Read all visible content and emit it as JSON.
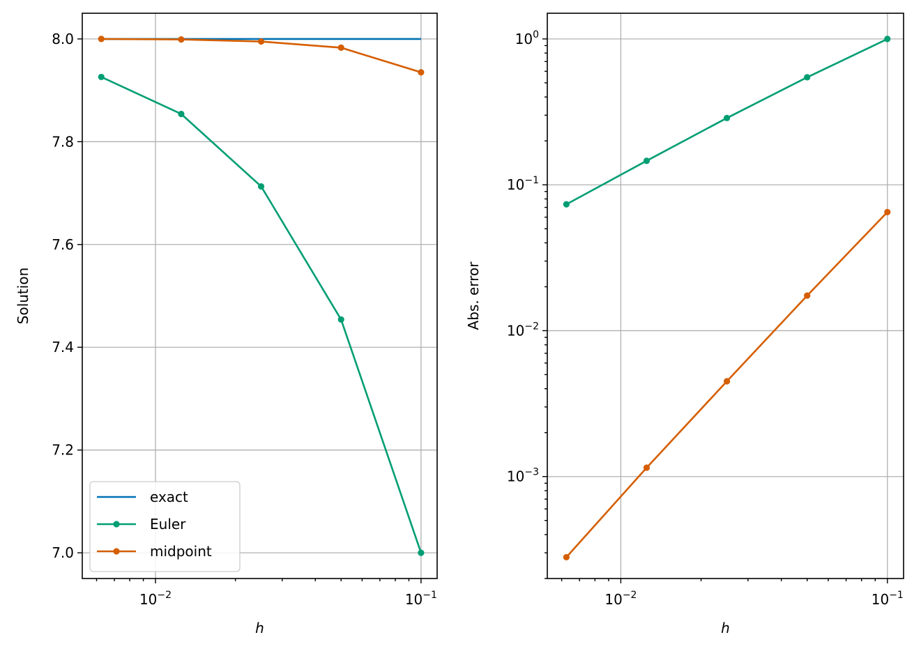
{
  "chart_data": [
    {
      "type": "line",
      "xlabel": "h",
      "ylabel": "Solution",
      "xscale": "log",
      "xlim": [
        0.0053,
        0.115
      ],
      "ylim": [
        6.95,
        8.05
      ],
      "grid": true,
      "legend_position": "lower-left",
      "x_tick_labels": [
        {
          "value": 0.01,
          "base": "10",
          "exp": "−2"
        },
        {
          "value": 0.1,
          "base": "10",
          "exp": "−1"
        }
      ],
      "y_tick_labels": [
        {
          "value": 7.0,
          "label": "7.0"
        },
        {
          "value": 7.2,
          "label": "7.2"
        },
        {
          "value": 7.4,
          "label": "7.4"
        },
        {
          "value": 7.6,
          "label": "7.6"
        },
        {
          "value": 7.8,
          "label": "7.8"
        },
        {
          "value": 8.0,
          "label": "8.0"
        }
      ],
      "series": [
        {
          "name": "exact",
          "color": "#0072b2",
          "markers": false,
          "x": [
            0.00625,
            0.0125,
            0.025,
            0.05,
            0.1
          ],
          "y": [
            8.0,
            8.0,
            8.0,
            8.0,
            8.0
          ]
        },
        {
          "name": "Euler",
          "color": "#009e73",
          "markers": true,
          "x": [
            0.00625,
            0.0125,
            0.025,
            0.05,
            0.1
          ],
          "y": [
            7.926,
            7.854,
            7.713,
            7.454,
            7.0
          ]
        },
        {
          "name": "midpoint",
          "color": "#d55e00",
          "markers": true,
          "x": [
            0.00625,
            0.0125,
            0.025,
            0.05,
            0.1
          ],
          "y": [
            8.0,
            7.999,
            7.995,
            7.983,
            7.935
          ]
        }
      ]
    },
    {
      "type": "line",
      "xlabel": "h",
      "ylabel": "Abs. error",
      "xscale": "log",
      "yscale": "log",
      "xlim": [
        0.0053,
        0.115
      ],
      "ylim": [
        0.0002,
        1.5
      ],
      "grid": true,
      "x_tick_labels": [
        {
          "value": 0.01,
          "base": "10",
          "exp": "−2"
        },
        {
          "value": 0.1,
          "base": "10",
          "exp": "−1"
        }
      ],
      "y_tick_labels": [
        {
          "value": 0.001,
          "base": "10",
          "exp": "−3"
        },
        {
          "value": 0.01,
          "base": "10",
          "exp": "−2"
        },
        {
          "value": 0.1,
          "base": "10",
          "exp": "−1"
        },
        {
          "value": 1,
          "base": "10",
          "exp": "0"
        }
      ],
      "series": [
        {
          "color": "#009e73",
          "markers": true,
          "x": [
            0.00625,
            0.0125,
            0.025,
            0.05,
            0.1
          ],
          "y": [
            0.0735,
            0.146,
            0.287,
            0.546,
            1.0
          ]
        },
        {
          "color": "#d55e00",
          "markers": true,
          "x": [
            0.00625,
            0.0125,
            0.025,
            0.05,
            0.1
          ],
          "y": [
            0.00028,
            0.00115,
            0.0045,
            0.0174,
            0.065
          ]
        }
      ]
    }
  ]
}
